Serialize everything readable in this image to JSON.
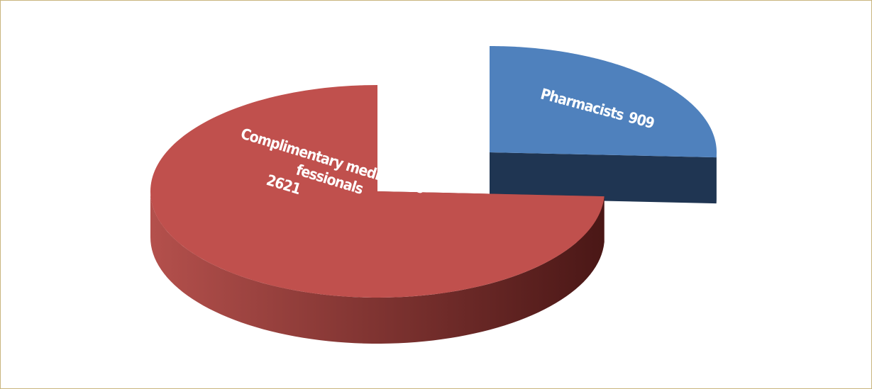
{
  "chart_data": {
    "type": "pie3d",
    "categories": [
      [
        "Complimentary medical pro-",
        "fessionals"
      ],
      [
        "Pharmacists"
      ]
    ],
    "values": [
      2621,
      909
    ],
    "colors": [
      "#c0504d",
      "#4f81bd"
    ],
    "side_colors": [
      "#7a2f2d",
      "#1f3552"
    ],
    "exploded": [
      false,
      true
    ]
  }
}
